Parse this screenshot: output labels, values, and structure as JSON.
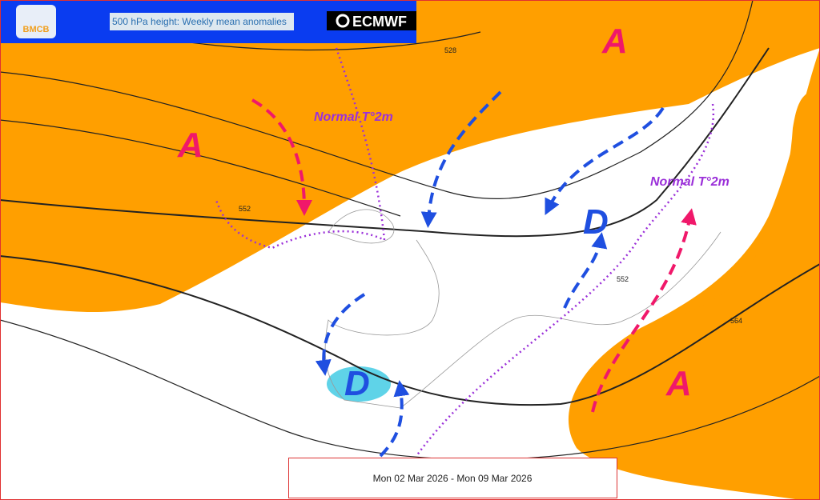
{
  "header": {
    "logo": "BMCB",
    "title": "500 hPa height: Weekly mean anomalies",
    "brand": "ECMWF"
  },
  "anticyclones": [
    "A",
    "A",
    "A"
  ],
  "depressions": [
    "D",
    "D"
  ],
  "annotations": [
    "Normal T°2m",
    "Normal T°2m"
  ],
  "contour_labels": [
    "528",
    "552",
    "552",
    "564"
  ],
  "footer": {
    "date_range": "Mon 02 Mar 2026 - Mon 09 Mar 2026"
  }
}
